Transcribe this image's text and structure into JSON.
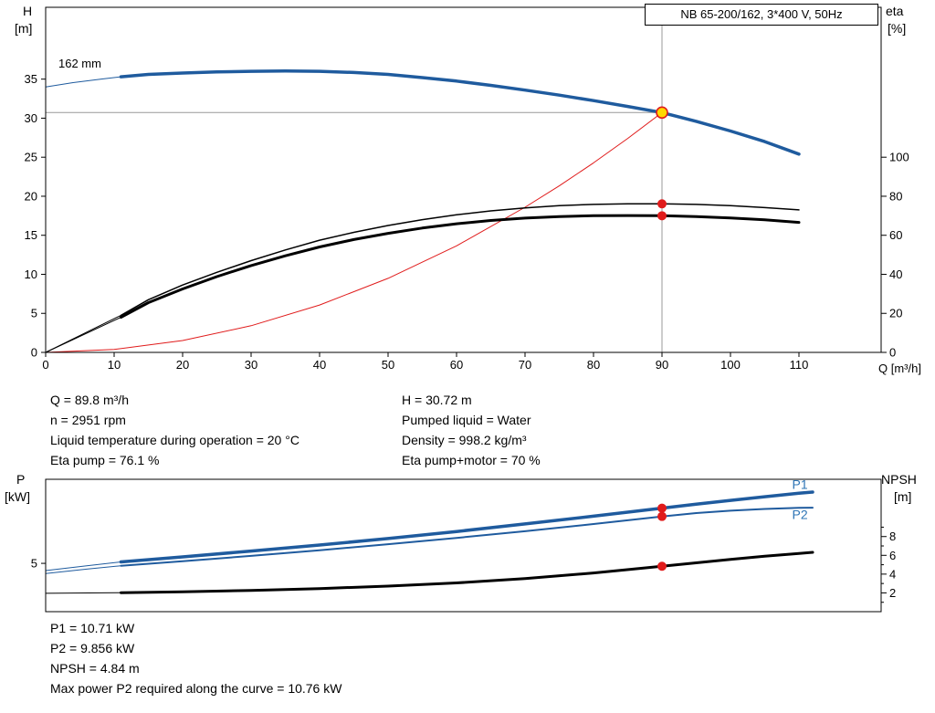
{
  "colors": {
    "blue": "#1f5b9e",
    "label_blue": "#2e75b6",
    "red": "#e01b1b",
    "yellow": "#ffd800",
    "gray": "#999999",
    "black": "#000000"
  },
  "chart_data": [
    {
      "type": "line",
      "title": "NB 65-200/162, 3*400 V, 50Hz",
      "xlabel": "Q [m³/h]",
      "ylabel_left": "H",
      "ylabel_left_unit": "[m]",
      "ylabel_right": "eta",
      "ylabel_right_unit": "[%]",
      "annotation": "162 mm",
      "xlim": [
        0,
        122
      ],
      "x_ticks": [
        0,
        10,
        20,
        30,
        40,
        50,
        60,
        70,
        80,
        90,
        100,
        110
      ],
      "left_axis": {
        "lim": [
          0,
          44.2
        ],
        "ticks": [
          0,
          5,
          10,
          15,
          20,
          25,
          30,
          35
        ]
      },
      "right_axis": {
        "lim": [
          0,
          176.8
        ],
        "ticks": [
          0,
          20,
          40,
          60,
          80,
          100
        ]
      },
      "crosshair": {
        "x": 90,
        "y": 30.72
      },
      "series": [
        {
          "name": "system-curve",
          "axis": "left",
          "color": "red",
          "width": 1,
          "points": [
            [
              0,
              0
            ],
            [
              10,
              0.38
            ],
            [
              20,
              1.52
            ],
            [
              30,
              3.41
            ],
            [
              40,
              6.07
            ],
            [
              50,
              9.48
            ],
            [
              60,
              13.65
            ],
            [
              70,
              18.59
            ],
            [
              75,
              21.33
            ],
            [
              80,
              24.28
            ],
            [
              85,
              27.41
            ],
            [
              90,
              30.72
            ]
          ]
        },
        {
          "name": "eta-pump",
          "axis": "right",
          "color": "black",
          "width": 1.5,
          "pre": [
            [
              0,
              0
            ],
            [
              11,
              19
            ]
          ],
          "points": [
            [
              11,
              19
            ],
            [
              15,
              27
            ],
            [
              20,
              34.5
            ],
            [
              25,
              41
            ],
            [
              30,
              47
            ],
            [
              35,
              52.5
            ],
            [
              40,
              57.5
            ],
            [
              45,
              61.5
            ],
            [
              50,
              65
            ],
            [
              55,
              68
            ],
            [
              60,
              70.5
            ],
            [
              65,
              72.5
            ],
            [
              70,
              74
            ],
            [
              75,
              75.2
            ],
            [
              80,
              75.8
            ],
            [
              85,
              76.1
            ],
            [
              90,
              76.1
            ],
            [
              95,
              75.8
            ],
            [
              100,
              75.2
            ],
            [
              105,
              74.2
            ],
            [
              110,
              73
            ]
          ]
        },
        {
          "name": "eta-pump-motor",
          "axis": "right",
          "color": "black",
          "width": 3,
          "pre": [
            [
              0,
              0
            ],
            [
              11,
              18
            ]
          ],
          "points": [
            [
              11,
              18
            ],
            [
              15,
              25.5
            ],
            [
              20,
              32.5
            ],
            [
              25,
              38.8
            ],
            [
              30,
              44.5
            ],
            [
              35,
              49.5
            ],
            [
              40,
              54
            ],
            [
              45,
              57.8
            ],
            [
              50,
              61
            ],
            [
              55,
              63.7
            ],
            [
              60,
              65.9
            ],
            [
              65,
              67.6
            ],
            [
              70,
              68.8
            ],
            [
              75,
              69.6
            ],
            [
              80,
              70.0
            ],
            [
              85,
              70.1
            ],
            [
              90,
              70.0
            ],
            [
              95,
              69.6
            ],
            [
              100,
              68.9
            ],
            [
              105,
              67.9
            ],
            [
              110,
              66.6
            ]
          ]
        },
        {
          "name": "head-162mm",
          "axis": "left",
          "color": "blue",
          "width": 3.5,
          "pre": [
            [
              0,
              34.0
            ],
            [
              4,
              34.55
            ],
            [
              8,
              35.0
            ],
            [
              11,
              35.3
            ]
          ],
          "points": [
            [
              11,
              35.3
            ],
            [
              15,
              35.6
            ],
            [
              20,
              35.78
            ],
            [
              25,
              35.92
            ],
            [
              30,
              36.0
            ],
            [
              35,
              36.05
            ],
            [
              40,
              36.0
            ],
            [
              45,
              35.85
            ],
            [
              50,
              35.6
            ],
            [
              55,
              35.2
            ],
            [
              60,
              34.75
            ],
            [
              65,
              34.2
            ],
            [
              70,
              33.6
            ],
            [
              75,
              32.95
            ],
            [
              80,
              32.25
            ],
            [
              85,
              31.5
            ],
            [
              90,
              30.72
            ],
            [
              95,
              29.6
            ],
            [
              100,
              28.35
            ],
            [
              105,
              27.0
            ],
            [
              110,
              25.4
            ]
          ]
        }
      ],
      "markers": [
        {
          "style": "duty",
          "x": 90,
          "y": 30.72,
          "axis": "left"
        },
        {
          "style": "dot",
          "x": 90,
          "y": 76.1,
          "axis": "right"
        },
        {
          "style": "dot",
          "x": 90,
          "y": 70,
          "axis": "right"
        }
      ]
    },
    {
      "type": "line",
      "title": "",
      "xlabel": "",
      "ylabel_left": "P",
      "ylabel_left_unit": "[kW]",
      "ylabel_right": "NPSH",
      "ylabel_right_unit": "[m]",
      "xlim": [
        0,
        122
      ],
      "x_ticks": [],
      "left_axis": {
        "lim": [
          0,
          13.7
        ],
        "ticks": [
          5
        ]
      },
      "right_axis": {
        "lim": [
          0,
          14.1
        ],
        "ticks": [
          2,
          4,
          6,
          8
        ],
        "minor_ticks": [
          1,
          3,
          5,
          7,
          9
        ]
      },
      "series": [
        {
          "name": "P2",
          "axis": "left",
          "color": "blue",
          "width": 2,
          "pre": [
            [
              0,
              3.95
            ],
            [
              6,
              4.4
            ],
            [
              11,
              4.75
            ]
          ],
          "points": [
            [
              11,
              4.75
            ],
            [
              20,
              5.22
            ],
            [
              30,
              5.77
            ],
            [
              40,
              6.36
            ],
            [
              50,
              6.98
            ],
            [
              60,
              7.63
            ],
            [
              70,
              8.32
            ],
            [
              80,
              9.07
            ],
            [
              90,
              9.856
            ],
            [
              95,
              10.2
            ],
            [
              100,
              10.45
            ],
            [
              105,
              10.63
            ],
            [
              110,
              10.74
            ],
            [
              112,
              10.76
            ]
          ]
        },
        {
          "name": "P1",
          "axis": "left",
          "color": "blue",
          "width": 3.5,
          "pre": [
            [
              0,
              4.25
            ],
            [
              6,
              4.75
            ],
            [
              11,
              5.15
            ]
          ],
          "points": [
            [
              11,
              5.15
            ],
            [
              20,
              5.67
            ],
            [
              30,
              6.27
            ],
            [
              40,
              6.9
            ],
            [
              50,
              7.57
            ],
            [
              60,
              8.3
            ],
            [
              70,
              9.08
            ],
            [
              80,
              9.88
            ],
            [
              90,
              10.71
            ],
            [
              95,
              11.12
            ],
            [
              100,
              11.52
            ],
            [
              105,
              11.9
            ],
            [
              110,
              12.25
            ],
            [
              112,
              12.38
            ]
          ]
        },
        {
          "name": "NPSH",
          "axis": "right",
          "color": "black",
          "width": 3,
          "pre": [
            [
              0,
              1.95
            ],
            [
              11,
              2.02
            ]
          ],
          "points": [
            [
              11,
              2.02
            ],
            [
              20,
              2.12
            ],
            [
              30,
              2.27
            ],
            [
              40,
              2.46
            ],
            [
              50,
              2.72
            ],
            [
              60,
              3.06
            ],
            [
              70,
              3.52
            ],
            [
              80,
              4.12
            ],
            [
              90,
              4.84
            ],
            [
              95,
              5.2
            ],
            [
              100,
              5.56
            ],
            [
              105,
              5.9
            ],
            [
              110,
              6.2
            ],
            [
              112,
              6.32
            ]
          ]
        }
      ],
      "markers": [
        {
          "style": "dot",
          "x": 90,
          "y": 10.71,
          "axis": "left"
        },
        {
          "style": "dot",
          "x": 90,
          "y": 9.856,
          "axis": "left"
        },
        {
          "style": "dot",
          "x": 90,
          "y": 4.84,
          "axis": "right"
        }
      ],
      "labels": [
        {
          "text": "P1",
          "x": 109,
          "y": 13.15,
          "axis": "left"
        },
        {
          "text": "P2",
          "x": 109,
          "y": 10.0,
          "axis": "left"
        }
      ]
    }
  ],
  "operating_info": {
    "left": [
      "Q = 89.8 m³/h",
      "n = 2951 rpm",
      "Liquid temperature during operation = 20 °C",
      "Eta pump = 76.1 %"
    ],
    "right": [
      "H = 30.72 m",
      "Pumped liquid = Water",
      "Density = 998.2 kg/m³",
      "Eta pump+motor = 70 %"
    ]
  },
  "power_info": [
    "P1 = 10.71 kW",
    "P2 = 9.856 kW",
    "NPSH = 4.84 m",
    "Max power P2 required along the curve = 10.76 kW"
  ]
}
